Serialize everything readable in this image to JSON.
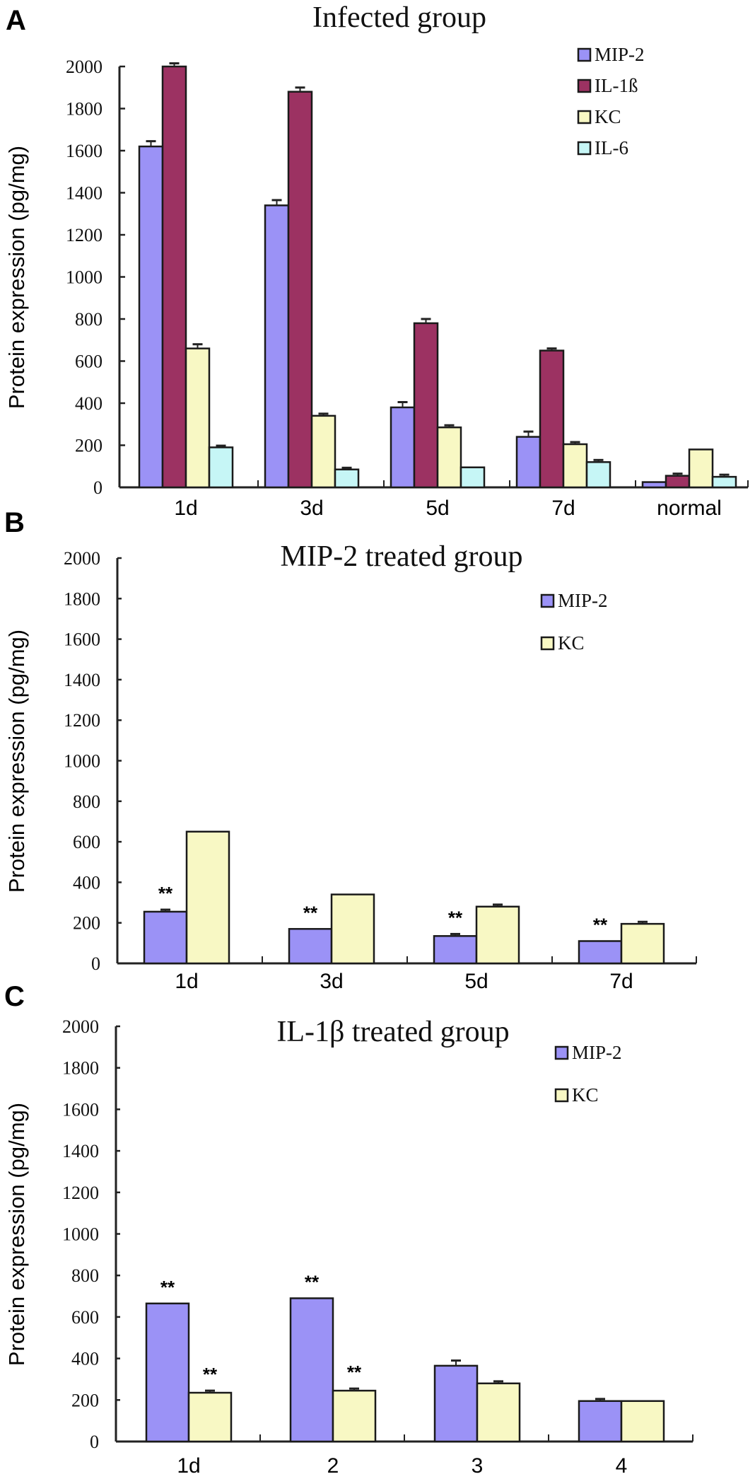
{
  "chart_data": [
    {
      "panel": "A",
      "type": "bar",
      "title": "Infected group",
      "xlabel": "",
      "ylabel": "Protein expression (pg/mg)",
      "ylim": [
        0,
        2000
      ],
      "yticks": [
        0,
        200,
        400,
        600,
        800,
        1000,
        1200,
        1400,
        1600,
        1800,
        2000
      ],
      "categories": [
        "1d",
        "3d",
        "5d",
        "7d",
        "normal"
      ],
      "legend_position": "top-right",
      "grid": false,
      "series": [
        {
          "name": "MIP-2",
          "color": "#9b92f6",
          "values": [
            1620,
            1340,
            380,
            240,
            25
          ],
          "errors": [
            25,
            25,
            25,
            25,
            0
          ]
        },
        {
          "name": "IL-1ß",
          "color": "#9c3262",
          "values": [
            2000,
            1880,
            780,
            650,
            55
          ],
          "errors": [
            15,
            20,
            20,
            10,
            10
          ]
        },
        {
          "name": "KC",
          "color": "#f8f8c4",
          "values": [
            660,
            340,
            285,
            205,
            180
          ],
          "errors": [
            20,
            10,
            10,
            10,
            0
          ]
        },
        {
          "name": "IL-6",
          "color": "#c6f6f6",
          "values": [
            190,
            85,
            95,
            120,
            50
          ],
          "errors": [
            8,
            8,
            0,
            10,
            10
          ]
        }
      ],
      "annotations": []
    },
    {
      "panel": "B",
      "type": "bar",
      "title": "MIP-2 treated group",
      "xlabel": "",
      "ylabel": "Protein expression (pg/mg)",
      "ylim": [
        0,
        2000
      ],
      "yticks": [
        0,
        200,
        400,
        600,
        800,
        1000,
        1200,
        1400,
        1600,
        1800,
        2000
      ],
      "categories": [
        "1d",
        "3d",
        "5d",
        "7d"
      ],
      "legend_position": "top-right",
      "grid": false,
      "series": [
        {
          "name": "MIP-2",
          "color": "#9b92f6",
          "values": [
            255,
            170,
            135,
            110
          ],
          "errors": [
            10,
            0,
            10,
            0
          ]
        },
        {
          "name": "KC",
          "color": "#f8f8c4",
          "values": [
            650,
            340,
            280,
            195
          ],
          "errors": [
            0,
            0,
            10,
            10
          ]
        }
      ],
      "annotations": [
        {
          "category": "1d",
          "series": "MIP-2",
          "text": "**"
        },
        {
          "category": "3d",
          "series": "MIP-2",
          "text": "**"
        },
        {
          "category": "5d",
          "series": "MIP-2",
          "text": "**"
        },
        {
          "category": "7d",
          "series": "MIP-2",
          "text": "**"
        }
      ]
    },
    {
      "panel": "C",
      "type": "bar",
      "title": "IL-1β treated group",
      "xlabel": "",
      "ylabel": "Protein expression (pg/mg)",
      "ylim": [
        0,
        2000
      ],
      "yticks": [
        0,
        200,
        400,
        600,
        800,
        1000,
        1200,
        1400,
        1600,
        1800,
        2000
      ],
      "categories": [
        "1d",
        "2",
        "3",
        "4"
      ],
      "legend_position": "top-right",
      "grid": false,
      "series": [
        {
          "name": "MIP-2",
          "color": "#9b92f6",
          "values": [
            665,
            690,
            365,
            195
          ],
          "errors": [
            0,
            0,
            25,
            10
          ]
        },
        {
          "name": "KC",
          "color": "#f8f8c4",
          "values": [
            235,
            245,
            280,
            195
          ],
          "errors": [
            10,
            10,
            10,
            0
          ]
        }
      ],
      "annotations": [
        {
          "category": "1d",
          "series": "MIP-2",
          "text": "**"
        },
        {
          "category": "1d",
          "series": "KC",
          "text": "**"
        },
        {
          "category": "2",
          "series": "MIP-2",
          "text": "**"
        },
        {
          "category": "2",
          "series": "KC",
          "text": "**"
        }
      ]
    }
  ],
  "panel_labels": [
    "A",
    "B",
    "C"
  ]
}
